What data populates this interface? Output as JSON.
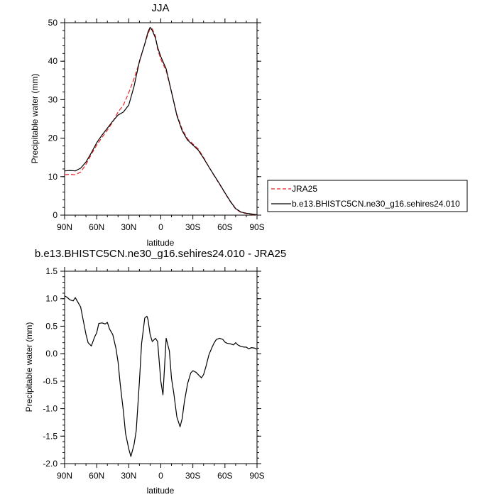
{
  "chart_data": [
    {
      "type": "line",
      "title": "JJA",
      "xlabel": "latitude",
      "ylabel": "Precipitable water (mm)",
      "xlim": [
        90,
        -90
      ],
      "ylim": [
        0,
        50
      ],
      "x_ticks": [
        {
          "value": 90,
          "label": "90N"
        },
        {
          "value": 60,
          "label": "60N"
        },
        {
          "value": 30,
          "label": "30N"
        },
        {
          "value": 0,
          "label": "0"
        },
        {
          "value": -30,
          "label": "30S"
        },
        {
          "value": -60,
          "label": "60S"
        },
        {
          "value": -90,
          "label": "90S"
        }
      ],
      "y_ticks": [
        0,
        10,
        20,
        30,
        40,
        50
      ],
      "legend": {
        "position": "right"
      },
      "series": [
        {
          "name": "JRA25",
          "color": "#e8252a",
          "dash": "dashed",
          "x": [
            90,
            85,
            80,
            75,
            70,
            65,
            60,
            55,
            50,
            45,
            40,
            35,
            30,
            25,
            20,
            15,
            12,
            10,
            8,
            5,
            3,
            0,
            -5,
            -10,
            -15,
            -20,
            -25,
            -30,
            -35,
            -40,
            -45,
            -50,
            -55,
            -60,
            -65,
            -70,
            -75,
            -80,
            -85,
            -90
          ],
          "y": [
            10.5,
            10.6,
            10.5,
            11.2,
            13.2,
            15.8,
            18.2,
            20.2,
            22.1,
            24.2,
            26.8,
            28.6,
            31.8,
            35.5,
            39.8,
            44.5,
            47.1,
            48.5,
            48.4,
            46.5,
            43.1,
            40.5,
            37.5,
            32.0,
            26.2,
            22.3,
            19.8,
            18.5,
            17.2,
            15.0,
            12.5,
            10.2,
            8.0,
            5.7,
            3.5,
            1.6,
            0.7,
            0.4,
            0.2,
            0.0
          ]
        },
        {
          "name": "b.e13.BHISTC5CN.ne30_g16.sehires24.010",
          "color": "#000000",
          "dash": "solid",
          "x": [
            90,
            85,
            80,
            75,
            70,
            65,
            60,
            55,
            50,
            45,
            40,
            35,
            30,
            25,
            20,
            15,
            12,
            10,
            8,
            5,
            3,
            0,
            -5,
            -10,
            -15,
            -20,
            -25,
            -30,
            -35,
            -40,
            -45,
            -50,
            -55,
            -60,
            -65,
            -70,
            -75,
            -80,
            -85,
            -90
          ],
          "y": [
            11.5,
            11.6,
            11.5,
            12.2,
            13.8,
            16.2,
            18.8,
            20.8,
            22.6,
            24.4,
            26.0,
            26.8,
            28.6,
            33.5,
            40.0,
            44.5,
            47.6,
            48.8,
            48.0,
            46.0,
            43.6,
            41.2,
            38.0,
            32.0,
            25.9,
            21.9,
            19.5,
            18.2,
            16.9,
            14.8,
            12.5,
            10.3,
            8.1,
            5.8,
            3.6,
            1.7,
            0.8,
            0.5,
            0.3,
            0.1
          ]
        }
      ]
    },
    {
      "type": "line",
      "title": "b.e13.BHISTC5CN.ne30_g16.sehires24.010 - JRA25",
      "xlabel": "latitude",
      "ylabel": "Precipitable water (mm)",
      "xlim": [
        90,
        -90
      ],
      "ylim": [
        -2.0,
        1.5
      ],
      "x_ticks": [
        {
          "value": 90,
          "label": "90N"
        },
        {
          "value": 60,
          "label": "60N"
        },
        {
          "value": 30,
          "label": "30N"
        },
        {
          "value": 0,
          "label": "0"
        },
        {
          "value": -30,
          "label": "30S"
        },
        {
          "value": -60,
          "label": "60S"
        },
        {
          "value": -90,
          "label": "90S"
        }
      ],
      "y_ticks": [
        "-2.0",
        "-1.5",
        "-1.0",
        "-0.5",
        "0.0",
        "0.5",
        "1.0",
        "1.5"
      ],
      "series": [
        {
          "color": "#000000",
          "dash": "solid",
          "x": [
            90,
            88,
            85,
            82,
            80,
            78,
            75,
            72,
            70,
            68,
            65,
            62,
            60,
            58,
            55,
            52,
            50,
            48,
            45,
            42,
            40,
            38,
            35,
            33,
            30,
            28,
            25,
            23,
            20,
            18,
            15,
            13,
            12,
            10,
            8,
            5,
            3,
            0,
            -2,
            -5,
            -8,
            -10,
            -12,
            -15,
            -18,
            -20,
            -22,
            -25,
            -28,
            -30,
            -33,
            -35,
            -38,
            -40,
            -42,
            -45,
            -48,
            -50,
            -52,
            -55,
            -58,
            -60,
            -62,
            -65,
            -68,
            -70,
            -72,
            -75,
            -78,
            -80,
            -82,
            -85,
            -88,
            -90
          ],
          "y": [
            1.05,
            1.03,
            0.98,
            0.96,
            1.02,
            0.95,
            0.85,
            0.55,
            0.35,
            0.2,
            0.14,
            0.3,
            0.38,
            0.55,
            0.56,
            0.54,
            0.57,
            0.45,
            0.35,
            0.1,
            -0.15,
            -0.55,
            -1.05,
            -1.45,
            -1.73,
            -1.87,
            -1.65,
            -1.4,
            -0.5,
            0.18,
            0.65,
            0.68,
            0.62,
            0.35,
            0.22,
            0.28,
            0.22,
            -0.5,
            -0.75,
            0.28,
            0.05,
            -0.45,
            -0.7,
            -1.15,
            -1.33,
            -1.18,
            -0.88,
            -0.55,
            -0.35,
            -0.31,
            -0.34,
            -0.38,
            -0.44,
            -0.38,
            -0.25,
            -0.02,
            0.12,
            0.2,
            0.26,
            0.28,
            0.26,
            0.21,
            0.19,
            0.18,
            0.16,
            0.2,
            0.16,
            0.13,
            0.12,
            0.12,
            0.09,
            0.11,
            0.1,
            0.08
          ]
        }
      ]
    }
  ]
}
